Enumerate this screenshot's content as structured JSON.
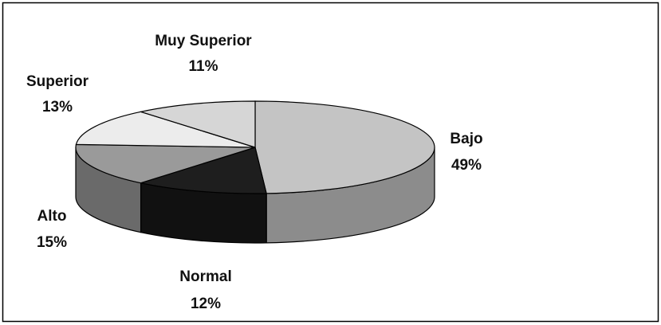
{
  "chart_data": {
    "type": "pie3d",
    "categories": [
      "Bajo",
      "Normal",
      "Alto",
      "Superior",
      "Muy Superior"
    ],
    "values": [
      49,
      12,
      15,
      13,
      11
    ],
    "value_labels": [
      "49%",
      "12%",
      "15%",
      "13%",
      "11%"
    ],
    "colors": [
      "#c4c4c4",
      "#1e1e1e",
      "#9a9a9a",
      "#ececec",
      "#d6d6d6"
    ],
    "side_colors": [
      "#8c8c8c",
      "#111111",
      "#6a6a6a",
      "#b4b4b4",
      "#a0a0a0"
    ],
    "start_angle": 0,
    "direction": "clockwise"
  }
}
